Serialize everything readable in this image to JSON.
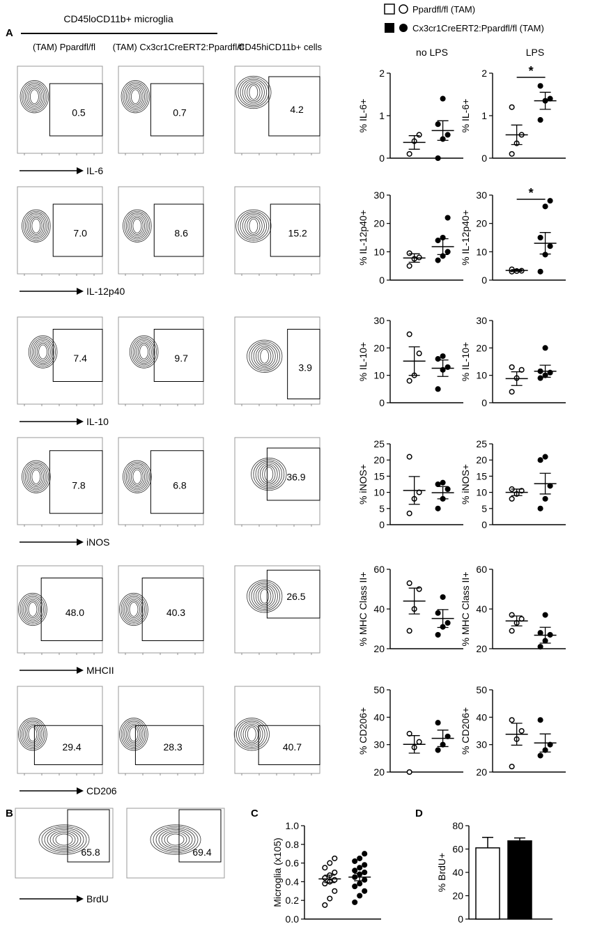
{
  "figure": {
    "panel_labels": [
      "A",
      "B",
      "C",
      "D"
    ],
    "group_header": "CD45loCD11b+ microglia",
    "legend": {
      "wt": "Ppardfl/fl (TAM)",
      "ko": "Cx3cr1CreERT2:Ppardfl/fl (TAM)"
    },
    "columns": {
      "wt": "(TAM) Ppardfl/fl",
      "ko": "(TAM) Cx3cr1CreERT2:Ppardfl/fl",
      "hi": "CD45hiCD11b+ cells"
    },
    "condition_labels": {
      "no_lps": "no LPS",
      "lps": "LPS"
    },
    "flow_rows": [
      {
        "marker": "IL-6",
        "values": [
          "0.5",
          "0.7",
          "4.2"
        ]
      },
      {
        "marker": "IL-12p40",
        "values": [
          "7.0",
          "8.6",
          "15.2"
        ]
      },
      {
        "marker": "IL-10",
        "values": [
          "7.4",
          "9.7",
          "3.9"
        ]
      },
      {
        "marker": "iNOS",
        "values": [
          "7.8",
          "6.8",
          "36.9"
        ]
      },
      {
        "marker": "MHCII",
        "values": [
          "48.0",
          "40.3",
          "26.5"
        ]
      },
      {
        "marker": "CD206",
        "values": [
          "29.4",
          "28.3",
          "40.7"
        ]
      }
    ],
    "brdu": {
      "marker": "BrdU",
      "values": [
        "65.8",
        "69.4"
      ]
    }
  },
  "chart_data": [
    {
      "type": "scatter",
      "id": "il6-nolps",
      "condition": "no LPS",
      "ylabel": "% IL-6+",
      "ylim": [
        0,
        2
      ],
      "yticks": [
        0,
        1,
        2
      ],
      "series": [
        {
          "name": "Ppardfl/fl (TAM)",
          "values": [
            0.1,
            0.4,
            0.55
          ],
          "mean": 0.37,
          "sem": 0.16
        },
        {
          "name": "Cx3cr1CreERT2:Ppardfl/fl (TAM)",
          "values": [
            0.0,
            0.45,
            0.55,
            0.8,
            1.4
          ],
          "mean": 0.65,
          "sem": 0.23
        }
      ]
    },
    {
      "type": "scatter",
      "id": "il6-lps",
      "condition": "LPS",
      "ylabel": "% IL-6+",
      "ylim": [
        0,
        2
      ],
      "yticks": [
        0,
        1,
        2
      ],
      "significance": "*",
      "series": [
        {
          "name": "Ppardfl/fl (TAM)",
          "values": [
            0.1,
            0.35,
            0.55,
            1.2
          ],
          "mean": 0.55,
          "sem": 0.23
        },
        {
          "name": "Cx3cr1CreERT2:Ppardfl/fl (TAM)",
          "values": [
            0.9,
            1.35,
            1.4,
            1.7
          ],
          "mean": 1.35,
          "sem": 0.2
        }
      ]
    },
    {
      "type": "scatter",
      "id": "il12-nolps",
      "condition": "no LPS",
      "ylabel": "% IL-12p40+",
      "ylim": [
        0,
        30
      ],
      "yticks": [
        0,
        10,
        20,
        30
      ],
      "series": [
        {
          "name": "Ppardfl/fl (TAM)",
          "values": [
            5.0,
            7.5,
            8.0,
            9.5
          ],
          "mean": 7.8,
          "sem": 1.5
        },
        {
          "name": "Cx3cr1CreERT2:Ppardfl/fl (TAM)",
          "values": [
            7.0,
            8.5,
            10.0,
            14.0,
            15.0,
            22.0
          ],
          "mean": 11.8,
          "sem": 2.8
        }
      ]
    },
    {
      "type": "scatter",
      "id": "il12-lps",
      "condition": "LPS",
      "ylabel": "% IL-12p40+",
      "ylim": [
        0,
        30
      ],
      "yticks": [
        0,
        10,
        20,
        30
      ],
      "significance": "*",
      "series": [
        {
          "name": "Ppardfl/fl (TAM)",
          "values": [
            3.0,
            3.2,
            3.3,
            3.8
          ],
          "mean": 3.4,
          "sem": 0.3
        },
        {
          "name": "Cx3cr1CreERT2:Ppardfl/fl (TAM)",
          "values": [
            3.0,
            9.0,
            12.0,
            15.0,
            26.0,
            28.0
          ],
          "mean": 13.0,
          "sem": 3.8
        }
      ]
    },
    {
      "type": "scatter",
      "id": "il10-nolps",
      "condition": "no LPS",
      "ylabel": "% IL-10+",
      "ylim": [
        0,
        30
      ],
      "yticks": [
        0,
        10,
        20,
        30
      ],
      "series": [
        {
          "name": "Ppardfl/fl (TAM)",
          "values": [
            8.0,
            10.0,
            18.0,
            25.0
          ],
          "mean": 15.2,
          "sem": 5.2
        },
        {
          "name": "Cx3cr1CreERT2:Ppardfl/fl (TAM)",
          "values": [
            5.0,
            12.0,
            13.0,
            16.0,
            17.0
          ],
          "mean": 12.6,
          "sem": 3.0
        }
      ]
    },
    {
      "type": "scatter",
      "id": "il10-lps",
      "condition": "LPS",
      "ylabel": "% IL-10+",
      "ylim": [
        0,
        30
      ],
      "yticks": [
        0,
        10,
        20,
        30
      ],
      "series": [
        {
          "name": "Ppardfl/fl (TAM)",
          "values": [
            4.0,
            9.0,
            12.0,
            13.0
          ],
          "mean": 8.8,
          "sem": 2.5
        },
        {
          "name": "Cx3cr1CreERT2:Ppardfl/fl (TAM)",
          "values": [
            9.0,
            10.0,
            11.0,
            11.5,
            20.0
          ],
          "mean": 11.5,
          "sem": 2.2
        }
      ]
    },
    {
      "type": "scatter",
      "id": "inos-nolps",
      "condition": "no LPS",
      "ylabel": "% iNOS+",
      "ylim": [
        0,
        25
      ],
      "yticks": [
        0,
        5,
        10,
        15,
        20,
        25
      ],
      "series": [
        {
          "name": "Ppardfl/fl (TAM)",
          "values": [
            3.5,
            8.0,
            10.0,
            21.0
          ],
          "mean": 10.6,
          "sem": 4.3
        },
        {
          "name": "Cx3cr1CreERT2:Ppardfl/fl (TAM)",
          "values": [
            5.0,
            8.0,
            11.0,
            12.5,
            13.0
          ],
          "mean": 9.9,
          "sem": 1.9
        }
      ]
    },
    {
      "type": "scatter",
      "id": "inos-lps",
      "condition": "LPS",
      "ylabel": "% iNOS+",
      "ylim": [
        0,
        25
      ],
      "yticks": [
        0,
        5,
        10,
        15,
        20,
        25
      ],
      "series": [
        {
          "name": "Ppardfl/fl (TAM)",
          "values": [
            8.0,
            9.5,
            10.5,
            11.0
          ],
          "mean": 10.0,
          "sem": 1.0
        },
        {
          "name": "Cx3cr1CreERT2:Ppardfl/fl (TAM)",
          "values": [
            5.0,
            8.0,
            12.0,
            20.0,
            21.0
          ],
          "mean": 12.7,
          "sem": 3.2
        }
      ]
    },
    {
      "type": "scatter",
      "id": "mhc-nolps",
      "condition": "no LPS",
      "ylabel": "% MHC Class II+",
      "ylim": [
        20,
        60
      ],
      "yticks": [
        20,
        40,
        60
      ],
      "series": [
        {
          "name": "Ppardfl/fl (TAM)",
          "values": [
            29.0,
            40.0,
            50.0,
            53.0
          ],
          "mean": 44.0,
          "sem": 6.5
        },
        {
          "name": "Cx3cr1CreERT2:Ppardfl/fl (TAM)",
          "values": [
            27.0,
            31.0,
            33.0,
            38.0,
            46.0
          ],
          "mean": 35.2,
          "sem": 4.5
        }
      ]
    },
    {
      "type": "scatter",
      "id": "mhc-lps",
      "condition": "LPS",
      "ylabel": "% MHC Class II+",
      "ylim": [
        20,
        60
      ],
      "yticks": [
        20,
        40,
        60
      ],
      "series": [
        {
          "name": "Ppardfl/fl (TAM)",
          "values": [
            29.0,
            33.0,
            35.0,
            37.0
          ],
          "mean": 34.0,
          "sem": 2.5
        },
        {
          "name": "Cx3cr1CreERT2:Ppardfl/fl (TAM)",
          "values": [
            21.0,
            24.0,
            27.0,
            28.0,
            37.0
          ],
          "mean": 26.8,
          "sem": 4.0
        }
      ]
    },
    {
      "type": "scatter",
      "id": "cd206-nolps",
      "condition": "no LPS",
      "ylabel": "% CD206+",
      "ylim": [
        20,
        50
      ],
      "yticks": [
        20,
        30,
        40,
        50
      ],
      "series": [
        {
          "name": "Ppardfl/fl (TAM)",
          "values": [
            20.0,
            29.0,
            31.0,
            34.0
          ],
          "mean": 30.1,
          "sem": 3.2
        },
        {
          "name": "Cx3cr1CreERT2:Ppardfl/fl (TAM)",
          "values": [
            28.0,
            30.0,
            33.0,
            38.0
          ],
          "mean": 32.3,
          "sem": 3.0
        }
      ]
    },
    {
      "type": "scatter",
      "id": "cd206-lps",
      "condition": "LPS",
      "ylabel": "% CD206+",
      "ylim": [
        20,
        50
      ],
      "yticks": [
        20,
        30,
        40,
        50
      ],
      "series": [
        {
          "name": "Ppardfl/fl (TAM)",
          "values": [
            22.0,
            32.0,
            35.0,
            39.0
          ],
          "mean": 33.8,
          "sem": 4.0
        },
        {
          "name": "Cx3cr1CreERT2:Ppardfl/fl (TAM)",
          "values": [
            26.0,
            28.0,
            30.0,
            39.0
          ],
          "mean": 30.6,
          "sem": 3.3
        }
      ]
    },
    {
      "type": "scatter",
      "id": "microglia-count",
      "ylabel": "Microglia (x105)",
      "ylim": [
        0.0,
        1.0
      ],
      "yticks": [
        0.0,
        0.2,
        0.4,
        0.6,
        0.8,
        1.0
      ],
      "series": [
        {
          "name": "Ppardfl/fl (TAM)",
          "values": [
            0.15,
            0.22,
            0.3,
            0.38,
            0.4,
            0.42,
            0.44,
            0.47,
            0.5,
            0.55,
            0.6,
            0.65
          ],
          "mean": 0.43,
          "sem": 0.04
        },
        {
          "name": "Cx3cr1CreERT2:Ppardfl/fl (TAM)",
          "values": [
            0.18,
            0.25,
            0.3,
            0.35,
            0.38,
            0.42,
            0.45,
            0.48,
            0.5,
            0.52,
            0.55,
            0.58,
            0.62,
            0.65,
            0.7
          ],
          "mean": 0.45,
          "sem": 0.04
        }
      ]
    },
    {
      "type": "bar",
      "id": "brdu-bar",
      "ylabel": "% BrdU+",
      "ylim": [
        0,
        80
      ],
      "yticks": [
        0,
        20,
        40,
        60,
        80
      ],
      "series": [
        {
          "name": "Ppardfl/fl (TAM)",
          "values": [
            61.0
          ],
          "sem": 9.0
        },
        {
          "name": "Cx3cr1CreERT2:Ppardfl/fl (TAM)",
          "values": [
            67.0
          ],
          "sem": 2.5
        }
      ]
    }
  ]
}
